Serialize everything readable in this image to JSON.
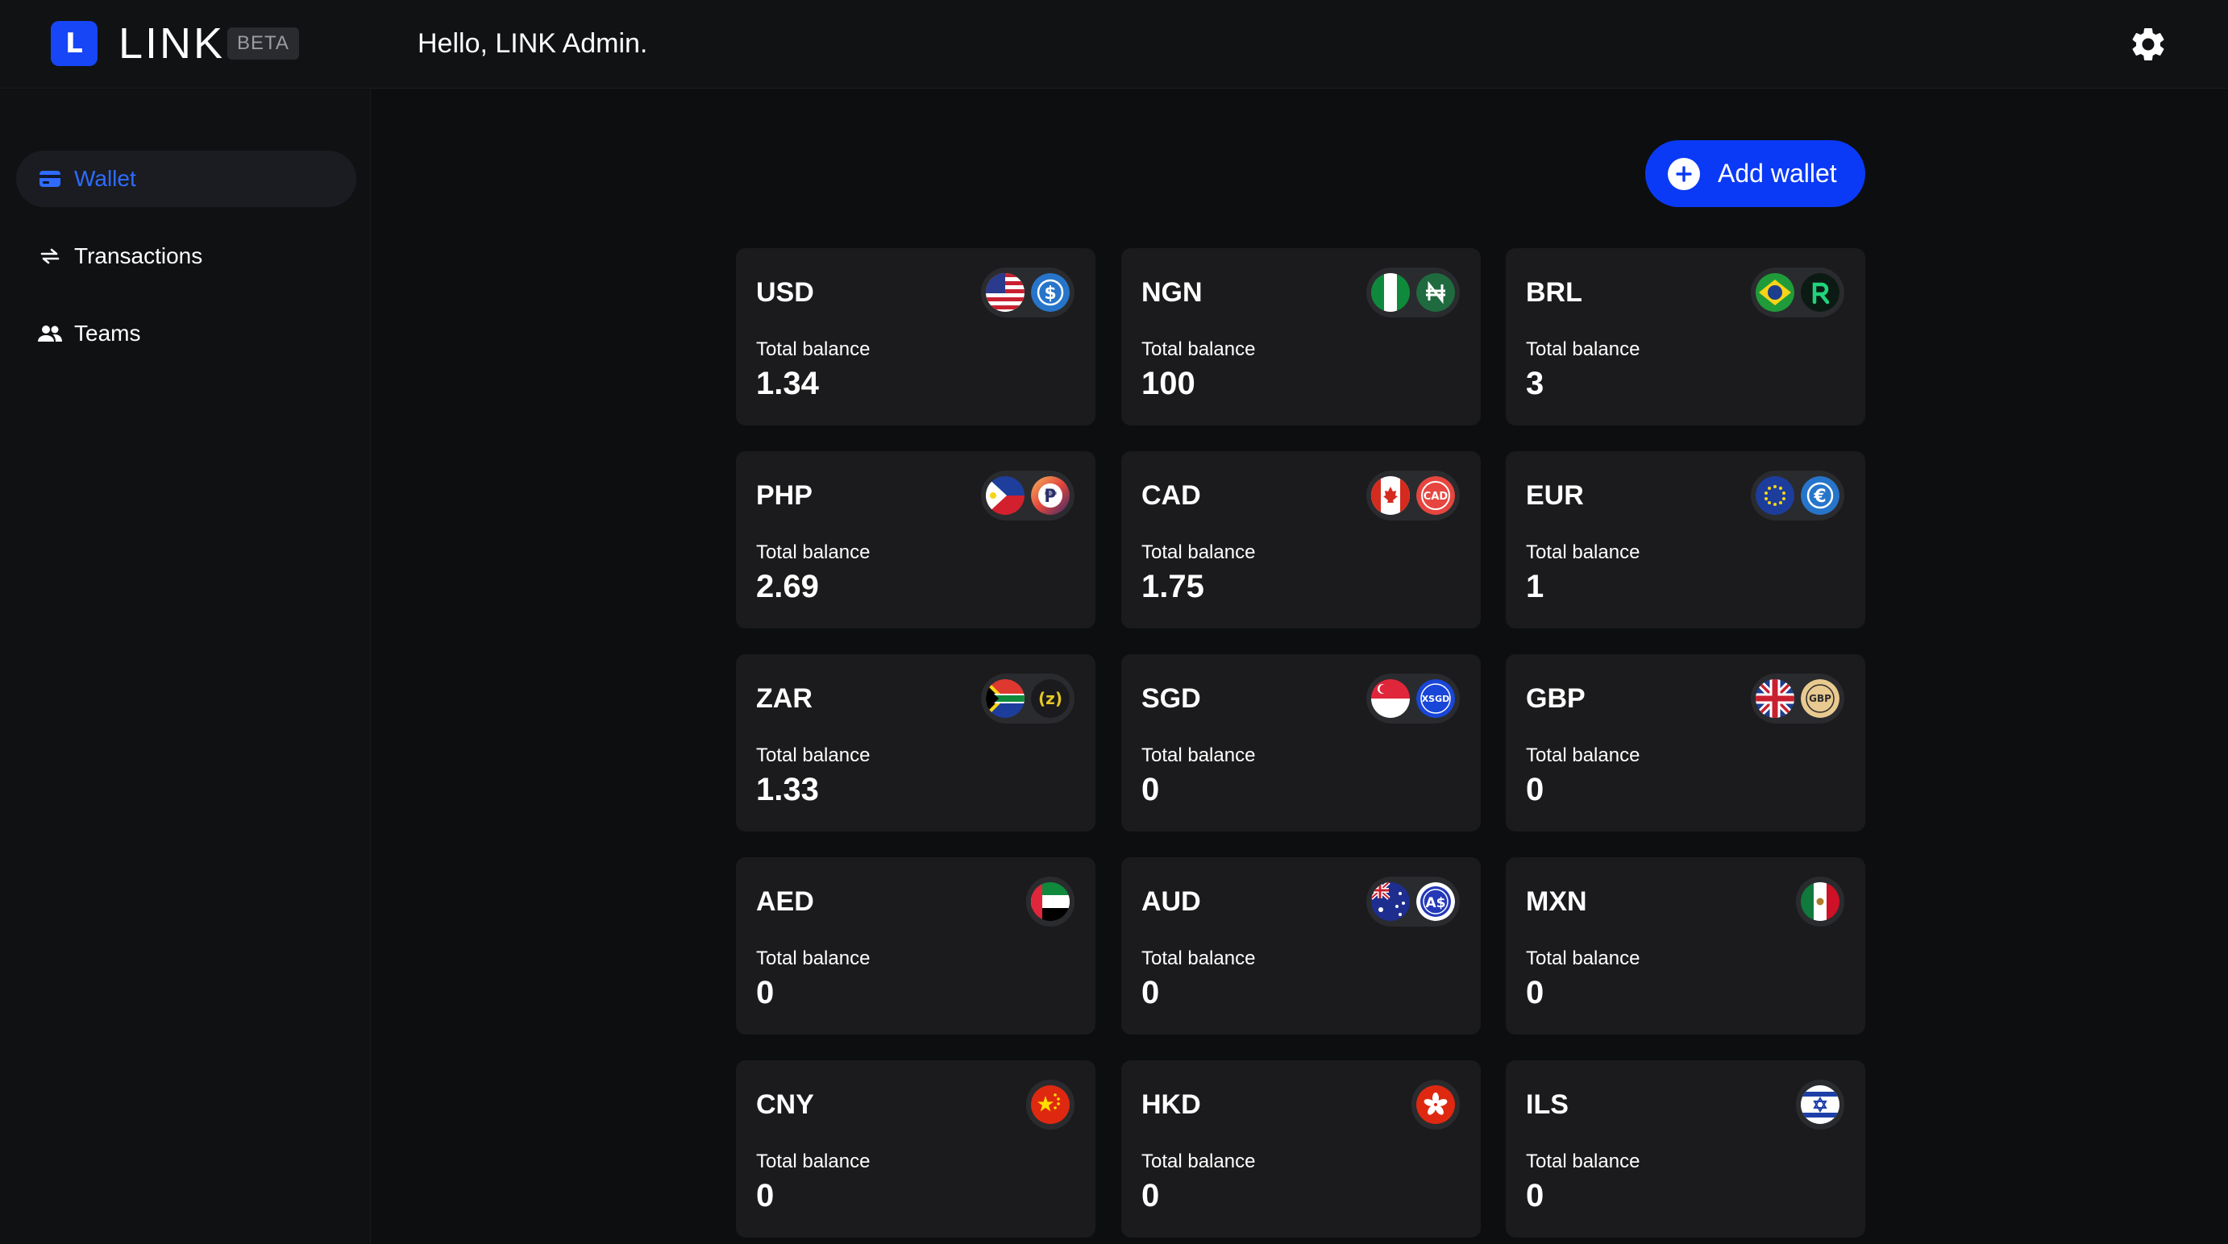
{
  "header": {
    "logo_letter": "L",
    "app_name": "LINK",
    "badge": "BETA",
    "greeting": "Hello, LINK Admin."
  },
  "sidebar": {
    "items": [
      {
        "label": "Wallet",
        "icon": "wallet-icon",
        "active": true
      },
      {
        "label": "Transactions",
        "icon": "swap-arrows-icon",
        "active": false
      },
      {
        "label": "Teams",
        "icon": "people-icon",
        "active": false
      }
    ]
  },
  "main": {
    "add_wallet_label": "Add wallet",
    "balance_label": "Total balance",
    "wallets": [
      {
        "code": "USD",
        "balance": "1.34",
        "icons": [
          "us-flag-icon",
          "usdc-coin-icon"
        ]
      },
      {
        "code": "NGN",
        "balance": "100",
        "icons": [
          "nigeria-flag-icon",
          "cngn-coin-icon"
        ]
      },
      {
        "code": "BRL",
        "balance": "3",
        "icons": [
          "brazil-flag-icon",
          "brla-coin-icon"
        ]
      },
      {
        "code": "PHP",
        "balance": "2.69",
        "icons": [
          "philippines-flag-icon",
          "php-coin-icon"
        ]
      },
      {
        "code": "CAD",
        "balance": "1.75",
        "icons": [
          "canada-flag-icon",
          "cadc-coin-icon"
        ]
      },
      {
        "code": "EUR",
        "balance": "1",
        "icons": [
          "eu-flag-icon",
          "eurc-coin-icon"
        ]
      },
      {
        "code": "ZAR",
        "balance": "1.33",
        "icons": [
          "south-africa-flag-icon",
          "zarp-coin-icon"
        ]
      },
      {
        "code": "SGD",
        "balance": "0",
        "icons": [
          "singapore-flag-icon",
          "xsgd-coin-icon"
        ]
      },
      {
        "code": "GBP",
        "balance": "0",
        "icons": [
          "uk-flag-icon",
          "gbp-coin-icon"
        ]
      },
      {
        "code": "AED",
        "balance": "0",
        "icons": [
          "uae-flag-icon"
        ]
      },
      {
        "code": "AUD",
        "balance": "0",
        "icons": [
          "australia-flag-icon",
          "aud-coin-icon"
        ]
      },
      {
        "code": "MXN",
        "balance": "0",
        "icons": [
          "mexico-flag-icon"
        ]
      },
      {
        "code": "CNY",
        "balance": "0",
        "icons": [
          "china-flag-icon"
        ]
      },
      {
        "code": "HKD",
        "balance": "0",
        "icons": [
          "hong-kong-flag-icon"
        ]
      },
      {
        "code": "ILS",
        "balance": "0",
        "icons": [
          "israel-flag-icon"
        ]
      }
    ]
  },
  "colors": {
    "accent": "#0a3af5",
    "active_nav": "#2f6bff",
    "card": "#1b1b1d",
    "background": "#0d0e10"
  }
}
